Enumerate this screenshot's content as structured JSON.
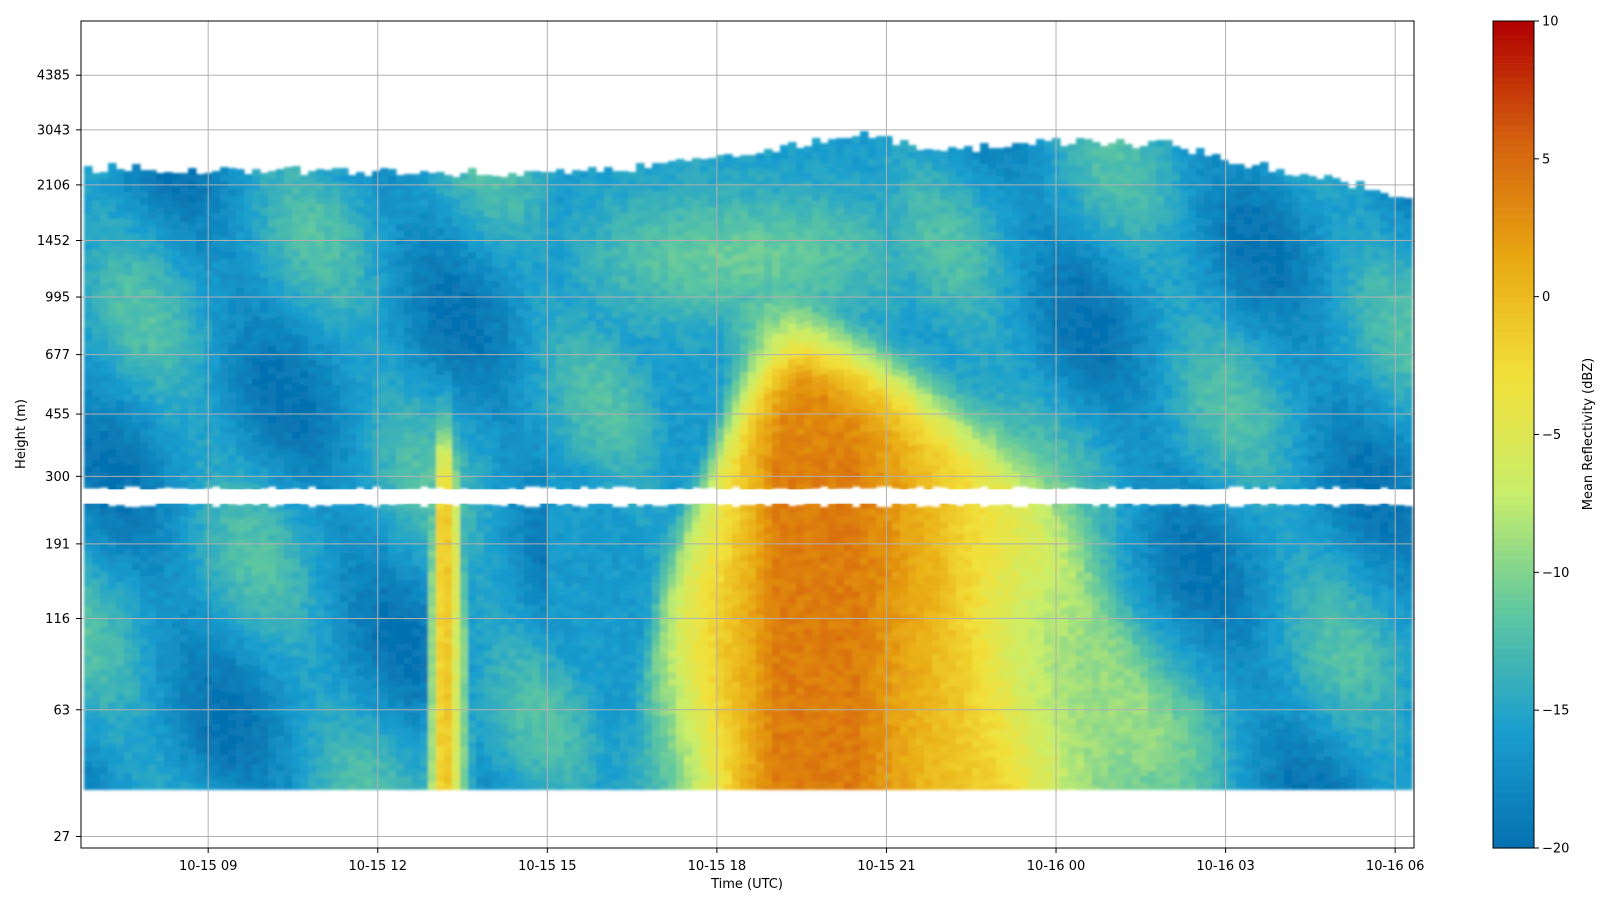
{
  "chart_data": {
    "type": "heatmap",
    "title": "",
    "xlabel": "Time (UTC)",
    "ylabel": "Height (m)",
    "x_range": [
      "2024-10-15 06:45",
      "2024-10-16 06:20"
    ],
    "x_ticks": [
      {
        "t": "2024-10-15 09:00",
        "label": "10-15 09"
      },
      {
        "t": "2024-10-15 12:00",
        "label": "10-15 12"
      },
      {
        "t": "2024-10-15 15:00",
        "label": "10-15 15"
      },
      {
        "t": "2024-10-15 18:00",
        "label": "10-15 18"
      },
      {
        "t": "2024-10-15 21:00",
        "label": "10-15 21"
      },
      {
        "t": "2024-10-16 00:00",
        "label": "10-16 00"
      },
      {
        "t": "2024-10-16 03:00",
        "label": "10-16 03"
      },
      {
        "t": "2024-10-16 06:00",
        "label": "10-16 06"
      }
    ],
    "y_scale": "log",
    "y_ticks": [
      {
        "v": 27,
        "label": "27"
      },
      {
        "v": 63,
        "label": "63"
      },
      {
        "v": 116,
        "label": "116"
      },
      {
        "v": 191,
        "label": "191"
      },
      {
        "v": 300,
        "label": "300"
      },
      {
        "v": 455,
        "label": "455"
      },
      {
        "v": 677,
        "label": "677"
      },
      {
        "v": 995,
        "label": "995"
      },
      {
        "v": 1452,
        "label": "1452"
      },
      {
        "v": 2106,
        "label": "2106"
      },
      {
        "v": 3043,
        "label": "3043"
      },
      {
        "v": 4385,
        "label": "4385"
      }
    ],
    "ylim": [
      25,
      6300
    ],
    "grid": true,
    "colorbar": {
      "label": "Mean Reflectivity (dBZ)",
      "min": -20,
      "max": 10,
      "ticks": [
        {
          "v": -20,
          "label": "−20"
        },
        {
          "v": -15,
          "label": "−15"
        },
        {
          "v": -10,
          "label": "−10"
        },
        {
          "v": -5,
          "label": "−5"
        },
        {
          "v": 0,
          "label": "0"
        },
        {
          "v": 5,
          "label": "5"
        },
        {
          "v": 10,
          "label": "10"
        }
      ],
      "colors": [
        "#0571b0",
        "#1a9ecf",
        "#5fc7a0",
        "#c8ee6b",
        "#f2e03a",
        "#e8a812",
        "#d4600f",
        "#b00000"
      ]
    },
    "data_extent": {
      "bottom_height": 37,
      "gap_heights": [
        250,
        275
      ],
      "cloud_top": [
        {
          "t": "2024-10-15 06:50",
          "h": 2350
        },
        {
          "t": "2024-10-15 12:00",
          "h": 2300
        },
        {
          "t": "2024-10-15 15:00",
          "h": 2250
        },
        {
          "t": "2024-10-15 17:00",
          "h": 2400
        },
        {
          "t": "2024-10-15 18:30",
          "h": 2600
        },
        {
          "t": "2024-10-15 20:30",
          "h": 2950
        },
        {
          "t": "2024-10-15 22:00",
          "h": 2650
        },
        {
          "t": "2024-10-16 00:00",
          "h": 2800
        },
        {
          "t": "2024-10-16 02:00",
          "h": 2750
        },
        {
          "t": "2024-10-16 03:30",
          "h": 2400
        },
        {
          "t": "2024-10-16 05:00",
          "h": 2150
        },
        {
          "t": "2024-10-16 05:50",
          "h": 2050
        },
        {
          "t": "2024-10-16 06:15",
          "h": 1850
        }
      ]
    },
    "features": [
      {
        "name": "main-precip-core",
        "t_start": "2024-10-15 16:30",
        "t_end": "2024-10-16 02:10",
        "t_peak": "2024-10-15 19:30",
        "h_top": 720,
        "max_dbz": 4
      },
      {
        "name": "early-precip-shaft",
        "t_start": "2024-10-15 12:50",
        "t_end": "2024-10-15 13:40",
        "t_peak": "2024-10-15 13:10",
        "h_top": 380,
        "max_dbz": -1
      },
      {
        "name": "upper-layer-enhancement",
        "t_start": "2024-10-15 15:30",
        "t_end": "2024-10-15 21:30",
        "h_center": 1300,
        "max_dbz": -11
      }
    ],
    "background_dbz": -16
  }
}
